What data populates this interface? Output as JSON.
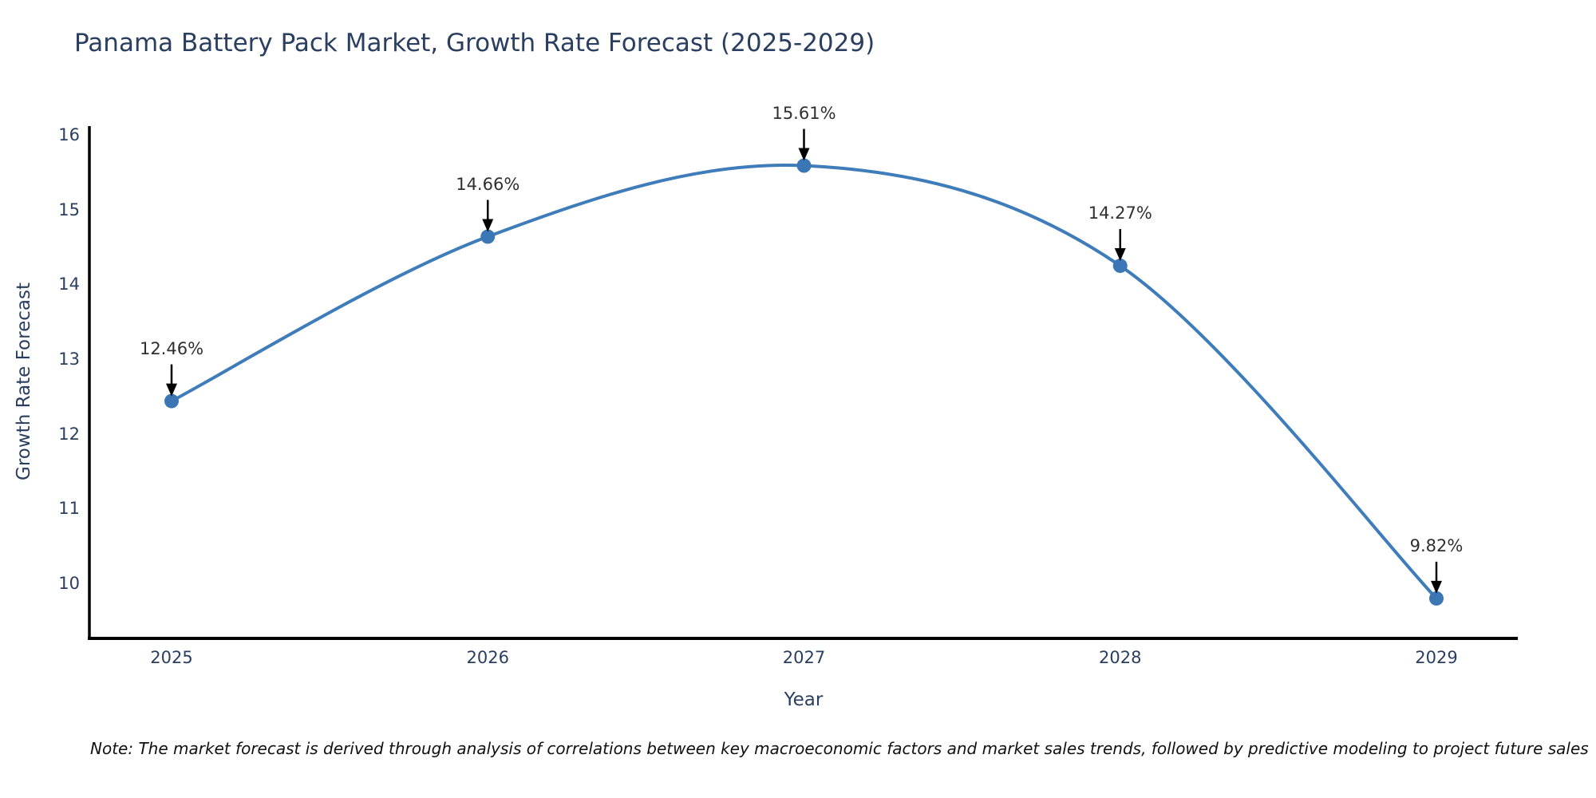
{
  "note": {
    "text": "Note: The market forecast is derived through analysis of correlations between key macroeconomic factors and market sales trends, followed by predictive modeling to project future sales"
  },
  "colors": {
    "line": "#3e7cba",
    "marker": "#3c77b5",
    "axis": "#000000",
    "text": "#2a3f5f",
    "annotation_text": "#2f2f2f",
    "arrow": "#000000",
    "background": "#ffffff"
  },
  "chart_data": {
    "type": "line",
    "title": "Panama Battery Pack Market, Growth Rate Forecast (2025-2029)",
    "xlabel": "Year",
    "ylabel": "Growth Rate Forecast",
    "x": [
      2025,
      2026,
      2027,
      2028,
      2029
    ],
    "series": [
      {
        "name": "Growth Rate Forecast",
        "values": [
          12.46,
          14.66,
          15.61,
          14.27,
          9.82
        ]
      }
    ],
    "point_labels": [
      "12.46%",
      "14.66%",
      "15.61%",
      "14.27%",
      "9.82%"
    ],
    "yticks": [
      10,
      11,
      12,
      13,
      14,
      15,
      16
    ],
    "ylim": [
      9.3,
      16.1
    ],
    "grid": false,
    "legend_position": "none",
    "line_shape": "spline",
    "marker": "circle"
  }
}
